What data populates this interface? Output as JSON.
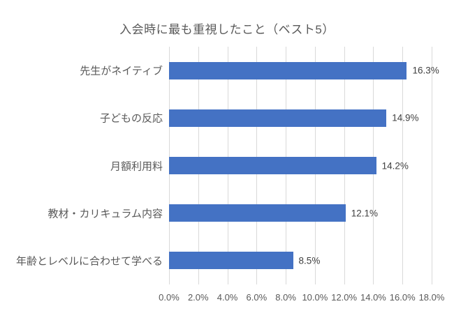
{
  "chart_data": {
    "type": "bar",
    "orientation": "horizontal",
    "title": "入会時に最も重視したこと（ベスト5）",
    "categories": [
      "先生がネイティブ",
      "子どもの反応",
      "月額利用料",
      "教材・カリキュラム内容",
      "年齢とレベルに合わせて学べる"
    ],
    "values": [
      16.3,
      14.9,
      14.2,
      12.1,
      8.5
    ],
    "value_labels": [
      "16.3%",
      "14.9%",
      "14.2%",
      "12.1%",
      "8.5%"
    ],
    "xlabel": "",
    "ylabel": "",
    "xlim": [
      0,
      18
    ],
    "x_tick_values": [
      0,
      2,
      4,
      6,
      8,
      10,
      12,
      14,
      16,
      18
    ],
    "x_tick_labels": [
      "0.0%",
      "2.0%",
      "4.0%",
      "6.0%",
      "8.0%",
      "10.0%",
      "12.0%",
      "14.0%",
      "16.0%",
      "18.0%"
    ],
    "grid": true,
    "legend": false
  },
  "colors": {
    "bar": "#4472c4",
    "gridline": "#d9d9d9",
    "title_text": "#595959",
    "category_text": "#595959",
    "value_text": "#404040",
    "tick_text": "#595959",
    "background": "#ffffff"
  }
}
